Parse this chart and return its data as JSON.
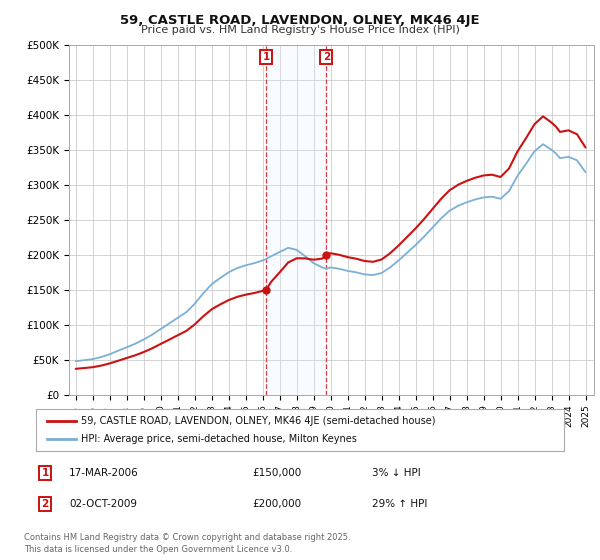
{
  "title": "59, CASTLE ROAD, LAVENDON, OLNEY, MK46 4JE",
  "subtitle": "Price paid vs. HM Land Registry's House Price Index (HPI)",
  "ylim": [
    0,
    500000
  ],
  "yticks": [
    0,
    50000,
    100000,
    150000,
    200000,
    250000,
    300000,
    350000,
    400000,
    450000,
    500000
  ],
  "ytick_labels": [
    "£0",
    "£50K",
    "£100K",
    "£150K",
    "£200K",
    "£250K",
    "£300K",
    "£350K",
    "£400K",
    "£450K",
    "£500K"
  ],
  "hpi_color": "#7bafd4",
  "price_color": "#cc1111",
  "annotation_box_color": "#cc1111",
  "shade_color": "#ddeeff",
  "background_color": "#ffffff",
  "grid_color": "#cccccc",
  "legend_label_red": "59, CASTLE ROAD, LAVENDON, OLNEY, MK46 4JE (semi-detached house)",
  "legend_label_blue": "HPI: Average price, semi-detached house, Milton Keynes",
  "annotation1_label": "1",
  "annotation1_date": "17-MAR-2006",
  "annotation1_price": "£150,000",
  "annotation1_change": "3% ↓ HPI",
  "annotation2_label": "2",
  "annotation2_date": "02-OCT-2009",
  "annotation2_price": "£200,000",
  "annotation2_change": "29% ↑ HPI",
  "footnote": "Contains HM Land Registry data © Crown copyright and database right 2025.\nThis data is licensed under the Open Government Licence v3.0.",
  "sale1_year": 2006.21,
  "sale1_price": 150000,
  "sale2_year": 2009.75,
  "sale2_price": 200000,
  "xlim_left": 1994.6,
  "xlim_right": 2025.5
}
